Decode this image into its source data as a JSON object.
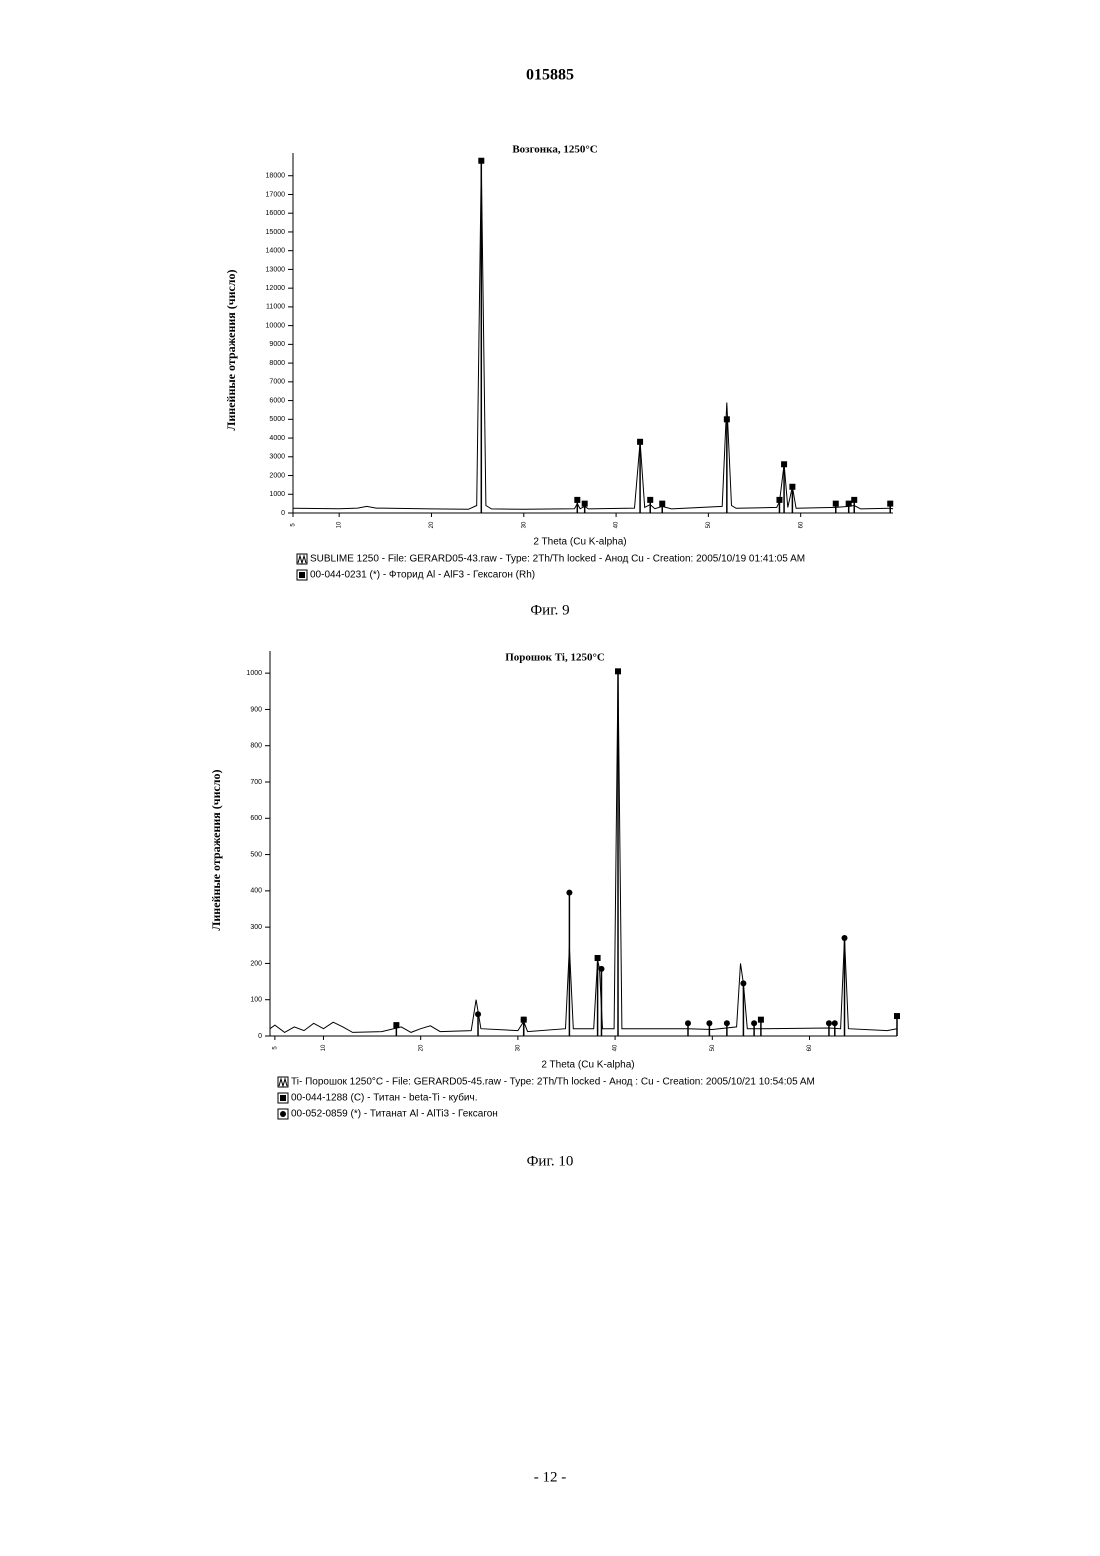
{
  "header": {
    "number": "015885"
  },
  "chart_data": [
    {
      "type": "line",
      "title": "Возгонка, 1250°C",
      "y_label": "Линейные отражения (число)",
      "x_label": "2 Theta (Cu K-alpha)",
      "caption": "Фиг. 9",
      "xlim": [
        5,
        70
      ],
      "ylim": [
        0,
        19000
      ],
      "xticks": [
        5,
        10,
        20,
        30,
        40,
        50,
        60
      ],
      "yticks": [
        0,
        1000,
        2000,
        3000,
        4000,
        5000,
        6000,
        7000,
        8000,
        9000,
        10000,
        11000,
        12000,
        13000,
        14000,
        15000,
        16000,
        17000,
        18000
      ],
      "series": [
        {
          "name": "SUBLIME 1250 - File: GERARD05-43.raw - Type: 2Th/Th locked - Анод Cu - Creation: 2005/10/19 01:41:05 AM",
          "color": "#000000",
          "marker": "line",
          "x": [
            5,
            10,
            12,
            13,
            14,
            20,
            24,
            24.9,
            25.4,
            25.9,
            26.5,
            30,
            35.5,
            35.8,
            36.1,
            36.6,
            37,
            42,
            42.6,
            43.1,
            43.7,
            44.2,
            45,
            46,
            51.5,
            52,
            52.5,
            53,
            57.4,
            57.7,
            58.2,
            58.6,
            59.1,
            59.5,
            63.8,
            65.2,
            65.8,
            66.5,
            69.7,
            70
          ],
          "values": [
            250,
            230,
            260,
            350,
            260,
            220,
            200,
            400,
            18700,
            400,
            220,
            200,
            230,
            500,
            230,
            350,
            220,
            260,
            3800,
            300,
            450,
            230,
            350,
            220,
            350,
            5900,
            400,
            250,
            300,
            600,
            2600,
            300,
            1400,
            250,
            300,
            350,
            400,
            220,
            250,
            220
          ]
        },
        {
          "name": "00-044-0231 (*) - Фторид Al - AlF3 - Гексагон (Rh)",
          "color": "#000000",
          "marker": "square",
          "x": [
            25.4,
            35.8,
            36.6,
            42.6,
            43.7,
            45,
            52,
            57.7,
            58.2,
            59.1,
            63.8,
            65.2,
            65.8,
            69.7
          ],
          "values": [
            18800,
            700,
            500,
            3800,
            700,
            500,
            5000,
            700,
            2600,
            1400,
            500,
            500,
            700,
            500
          ]
        }
      ]
    },
    {
      "type": "line",
      "title": "Порошок Ti, 1250°C",
      "y_label": "Линейные отражения (число)",
      "x_label": "2 Theta (Cu K-alpha)",
      "caption": "Фиг. 10",
      "xlim": [
        4.5,
        69
      ],
      "ylim": [
        0,
        1050
      ],
      "xticks": [
        5,
        10,
        20,
        30,
        40,
        50,
        60
      ],
      "yticks": [
        0,
        100,
        200,
        300,
        400,
        500,
        600,
        700,
        800,
        900,
        1000
      ],
      "series": [
        {
          "name": "Ti- Порошок 1250°C - File: GERARD05-45.raw - Type: 2Th/Th locked - Анод : Cu - Creation: 2005/10/21 10:54:05 AM",
          "color": "#000000",
          "marker": "line",
          "x": [
            4.5,
            5,
            6,
            7,
            8,
            9,
            10,
            11,
            12,
            13,
            16,
            18,
            19,
            20,
            21,
            22,
            25.2,
            25.7,
            26.2,
            30,
            30.6,
            31,
            34.9,
            35.3,
            35.7,
            37.8,
            38.2,
            38.4,
            38.7,
            39.9,
            40.3,
            40.7,
            47.5,
            50,
            52.5,
            52.9,
            53.2,
            53.6,
            55,
            62,
            63.2,
            63.6,
            64,
            68,
            69
          ],
          "values": [
            20,
            30,
            10,
            25,
            15,
            35,
            20,
            38,
            25,
            10,
            12,
            25,
            10,
            20,
            28,
            12,
            15,
            100,
            20,
            15,
            40,
            12,
            20,
            245,
            20,
            20,
            210,
            185,
            20,
            20,
            1000,
            20,
            20,
            18,
            25,
            200,
            145,
            20,
            20,
            22,
            20,
            270,
            20,
            15,
            20
          ]
        },
        {
          "name": "00-044-1288 (C) - Титан - beta-Ti - кубич.",
          "color": "#000000",
          "marker": "square",
          "x": [
            17.5,
            30.6,
            38.2,
            40.3,
            55,
            69
          ],
          "values": [
            30,
            45,
            215,
            1005,
            45,
            55
          ]
        },
        {
          "name": "00-052-0859 (*) - Титанат Al - AlTi3 - Гексагон",
          "color": "#000000",
          "marker": "circle",
          "x": [
            25.9,
            30.6,
            35.3,
            38.6,
            47.5,
            49.7,
            51.5,
            53.2,
            54.3,
            62,
            62.6,
            63.6
          ],
          "values": [
            60,
            45,
            395,
            185,
            35,
            35,
            35,
            145,
            35,
            35,
            35,
            270
          ]
        }
      ]
    }
  ],
  "footer": {
    "page": "- 12 -"
  }
}
